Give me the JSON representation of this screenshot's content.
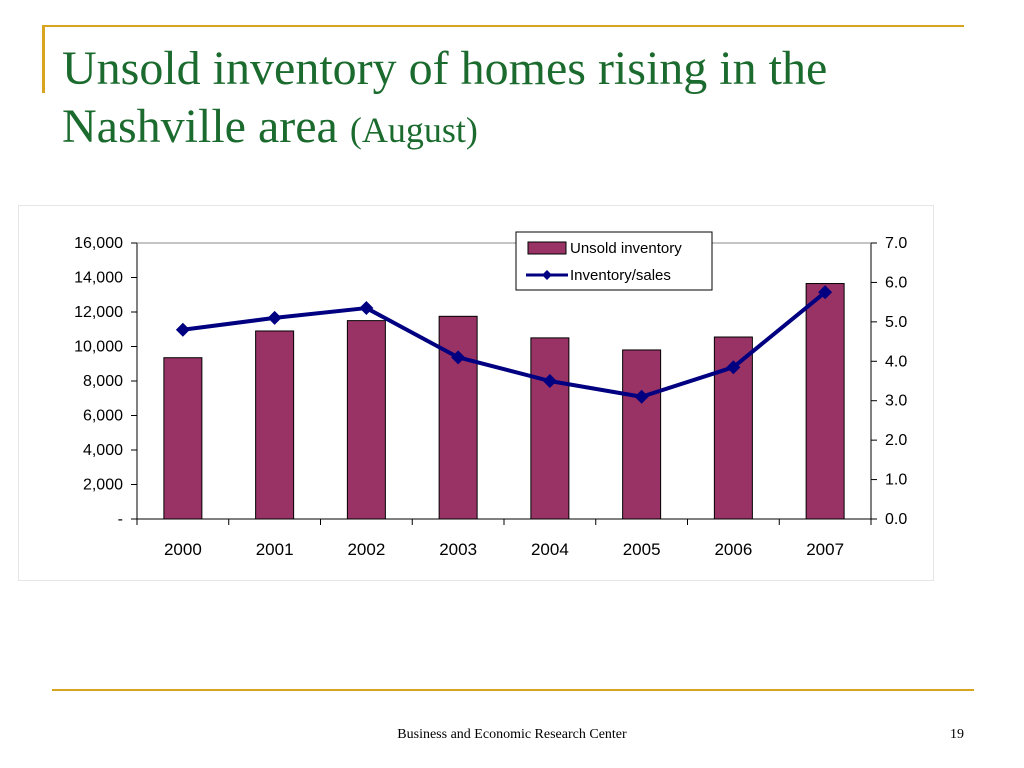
{
  "slide": {
    "title_main": "Unsold inventory of homes rising in the Nashville area",
    "title_sub": "(August)",
    "footer": "Business and Economic Research Center",
    "page_number": "19"
  },
  "colors": {
    "bar": "#993366",
    "line": "#000080",
    "title": "#1b6b2e",
    "accent": "#d9a520"
  },
  "chart_data": {
    "type": "bar",
    "categories": [
      "2000",
      "2001",
      "2002",
      "2003",
      "2004",
      "2005",
      "2006",
      "2007"
    ],
    "series": [
      {
        "name": "Unsold inventory",
        "type": "bar",
        "axis": "left",
        "values": [
          9350,
          10900,
          11500,
          11750,
          10500,
          9800,
          10550,
          13650
        ]
      },
      {
        "name": "Inventory/sales",
        "type": "line",
        "axis": "right",
        "values": [
          4.8,
          5.1,
          5.35,
          4.1,
          3.5,
          3.1,
          3.85,
          5.75
        ]
      }
    ],
    "y_left": {
      "ylim": [
        0,
        16000
      ],
      "ticks": [
        0,
        2000,
        4000,
        6000,
        8000,
        10000,
        12000,
        14000,
        16000
      ],
      "tick_labels": [
        "-",
        "2,000",
        "4,000",
        "6,000",
        "8,000",
        "10,000",
        "12,000",
        "14,000",
        "16,000"
      ]
    },
    "y_right": {
      "ylim": [
        0,
        7
      ],
      "ticks": [
        0,
        1,
        2,
        3,
        4,
        5,
        6,
        7
      ],
      "tick_labels": [
        "0.0",
        "1.0",
        "2.0",
        "3.0",
        "4.0",
        "5.0",
        "6.0",
        "7.0"
      ]
    },
    "legend_position": "top-right",
    "grid": false
  }
}
